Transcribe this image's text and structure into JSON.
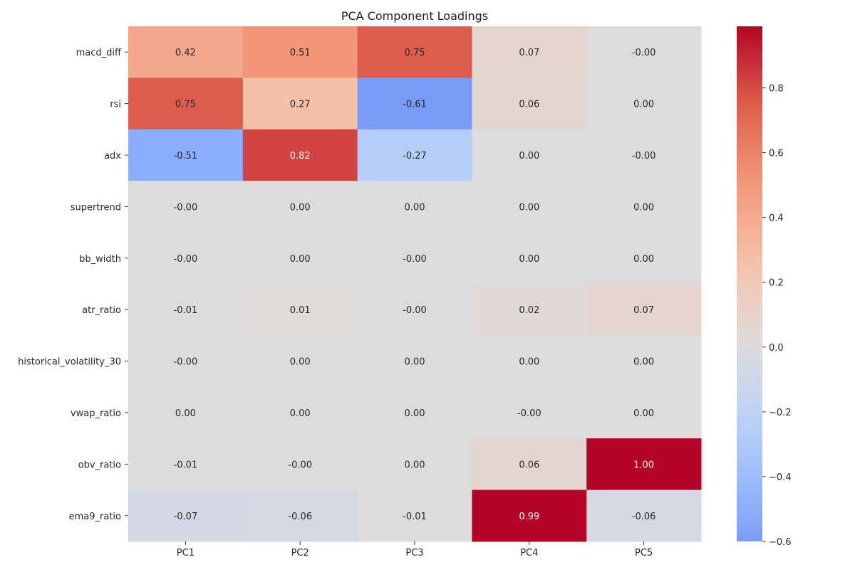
{
  "chart_data": {
    "type": "heatmap",
    "title": "PCA Component Loadings",
    "xlabel": "",
    "ylabel": "",
    "columns": [
      "PC1",
      "PC2",
      "PC3",
      "PC4",
      "PC5"
    ],
    "rows": [
      "macd_diff",
      "rsi",
      "adx",
      "supertrend",
      "bb_width",
      "atr_ratio",
      "historical_volatility_30",
      "vwap_ratio",
      "obv_ratio",
      "ema9_ratio"
    ],
    "values": [
      [
        0.42,
        0.51,
        0.75,
        0.07,
        -0.0
      ],
      [
        0.75,
        0.27,
        -0.61,
        0.06,
        0.0
      ],
      [
        -0.51,
        0.82,
        -0.27,
        0.0,
        -0.0
      ],
      [
        -0.0,
        0.0,
        0.0,
        0.0,
        0.0
      ],
      [
        -0.0,
        0.0,
        -0.0,
        0.0,
        0.0
      ],
      [
        -0.01,
        0.01,
        -0.0,
        0.02,
        0.07
      ],
      [
        -0.0,
        0.0,
        0.0,
        0.0,
        0.0
      ],
      [
        0.0,
        0.0,
        0.0,
        -0.0,
        0.0
      ],
      [
        -0.01,
        -0.0,
        0.0,
        0.06,
        1.0
      ],
      [
        -0.07,
        -0.06,
        -0.01,
        0.99,
        -0.06
      ]
    ],
    "annotations": [
      [
        "0.42",
        "0.51",
        "0.75",
        "0.07",
        "-0.00"
      ],
      [
        "0.75",
        "0.27",
        "-0.61",
        "0.06",
        "0.00"
      ],
      [
        "-0.51",
        "0.82",
        "-0.27",
        "0.00",
        "-0.00"
      ],
      [
        "-0.00",
        "0.00",
        "0.00",
        "0.00",
        "0.00"
      ],
      [
        "-0.00",
        "0.00",
        "-0.00",
        "0.00",
        "0.00"
      ],
      [
        "-0.01",
        "0.01",
        "-0.00",
        "0.02",
        "0.07"
      ],
      [
        "-0.00",
        "0.00",
        "0.00",
        "0.00",
        "0.00"
      ],
      [
        "0.00",
        "0.00",
        "0.00",
        "-0.00",
        "0.00"
      ],
      [
        "-0.01",
        "-0.00",
        "0.00",
        "0.06",
        "1.00"
      ],
      [
        "-0.07",
        "-0.06",
        "-0.01",
        "0.99",
        "-0.06"
      ]
    ],
    "colormap": "coolwarm",
    "colormap_colors": [
      "#3b4cc0",
      "#dddcdc",
      "#b40426"
    ],
    "color_range": [
      -0.6,
      0.99
    ],
    "color_center": 0.0,
    "colorbar_ticks": [
      {
        "value": -0.6,
        "label": "−0.6"
      },
      {
        "value": -0.4,
        "label": "−0.4"
      },
      {
        "value": -0.2,
        "label": "−0.2"
      },
      {
        "value": 0.0,
        "label": "0.0"
      },
      {
        "value": 0.2,
        "label": "0.2"
      },
      {
        "value": 0.4,
        "label": "0.4"
      },
      {
        "value": 0.6,
        "label": "0.6"
      },
      {
        "value": 0.8,
        "label": "0.8"
      }
    ],
    "grid": false,
    "legend": "colorbar-right"
  }
}
